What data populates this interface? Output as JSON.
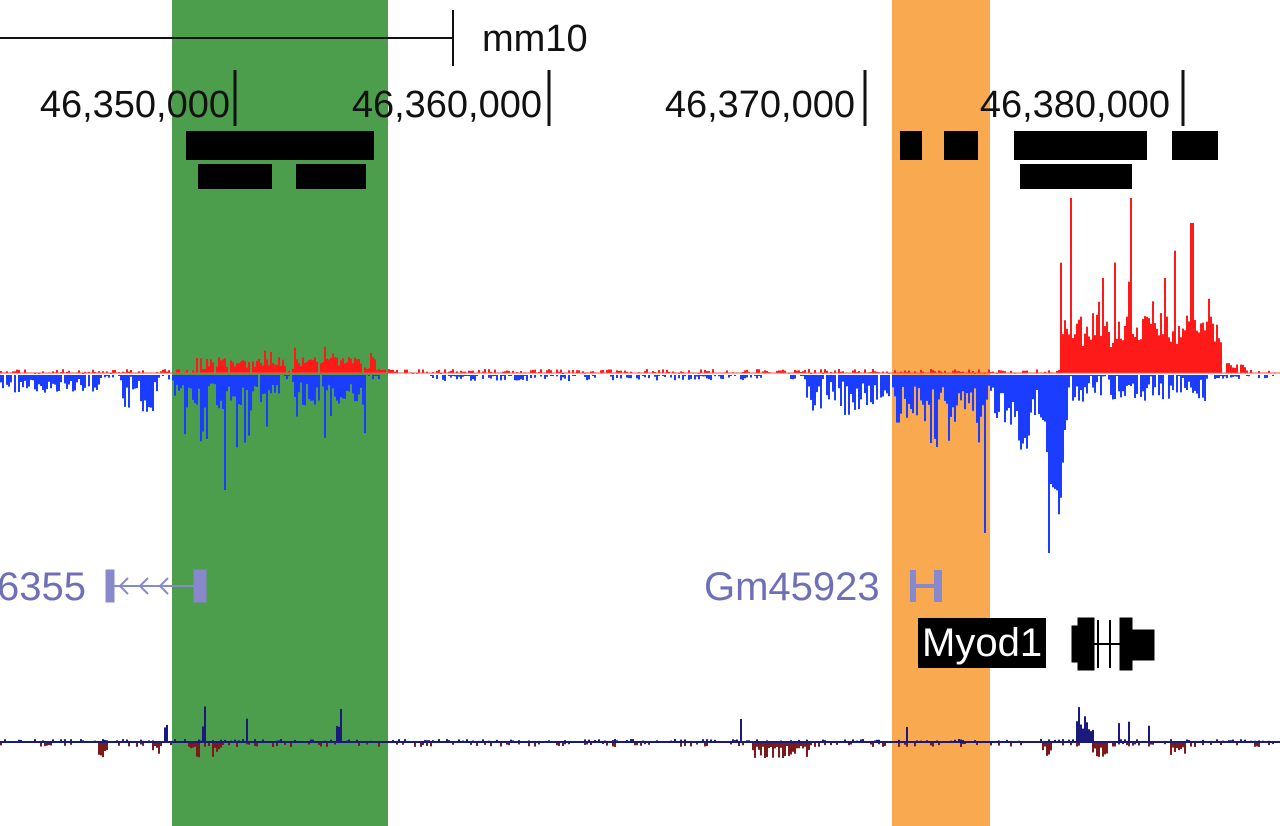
{
  "browser": {
    "assembly": "mm10",
    "ruler_positions": [
      "46,350,000",
      "46,360,000",
      "46,370,000",
      "46,380,000"
    ],
    "highlight_colors": {
      "green": "#4c9e4c",
      "orange": "#f9a94f"
    },
    "signal_colors": {
      "plus_strand": "#ff1a1a",
      "minus_strand": "#1a3dff",
      "conservation_pos": "#1a1a7a",
      "conservation_neg": "#7a1a1a"
    }
  },
  "genes": {
    "gm46355_label": "6355",
    "gm45923_label": "Gm45923",
    "myod1_label": "Myod1",
    "gene_color": "#8888cc"
  }
}
